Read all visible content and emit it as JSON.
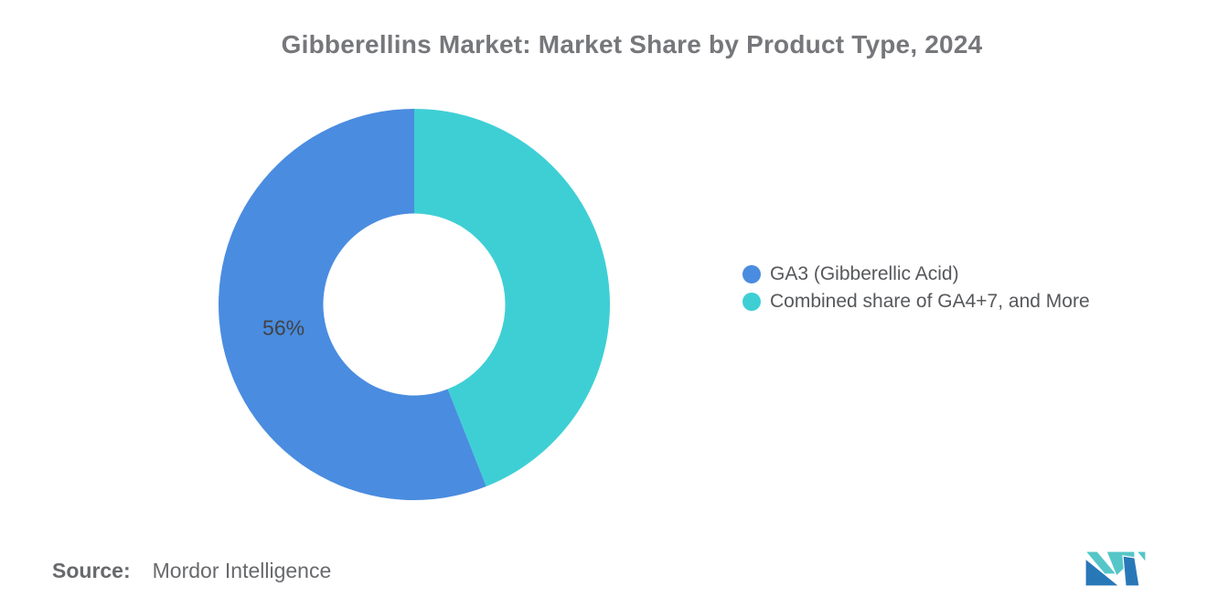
{
  "title": {
    "text": "Gibberellins Market: Market Share by Product Type, 2024",
    "color": "#76777b"
  },
  "chart_data": {
    "type": "pie",
    "subtype": "donut",
    "title": "Gibberellins Market: Market Share by Product Type, 2024",
    "units": "percent market share",
    "year": "2024",
    "slices_clockwise_from_top": [
      {
        "name": "Combined share of GA4+7, and More",
        "value": 44,
        "color": "#3ECFD5",
        "label": ""
      },
      {
        "name": "GA3 (Gibberellic Acid)",
        "value": 56,
        "color": "#4A8CE0",
        "label": "56%"
      }
    ],
    "start_angle_deg": 0,
    "inner_radius_ratio": 0.465,
    "label_radius_ratio": 0.68,
    "label_color": "#404245",
    "label_font_px": 23,
    "legend_position": "right",
    "background": "#ffffff"
  },
  "legend": {
    "items": [
      {
        "label": "GA3 (Gibberellic Acid)",
        "color": "#4A8CE0"
      },
      {
        "label": "Combined share of GA4+7, and More",
        "color": "#3ECFD5"
      }
    ]
  },
  "footer": {
    "source_label": "Source:",
    "source_value": "Mordor Intelligence"
  },
  "logo": {
    "alt": "mordor-intelligence-logo",
    "blue": "#2878B8",
    "teal": "#55C6C8"
  }
}
